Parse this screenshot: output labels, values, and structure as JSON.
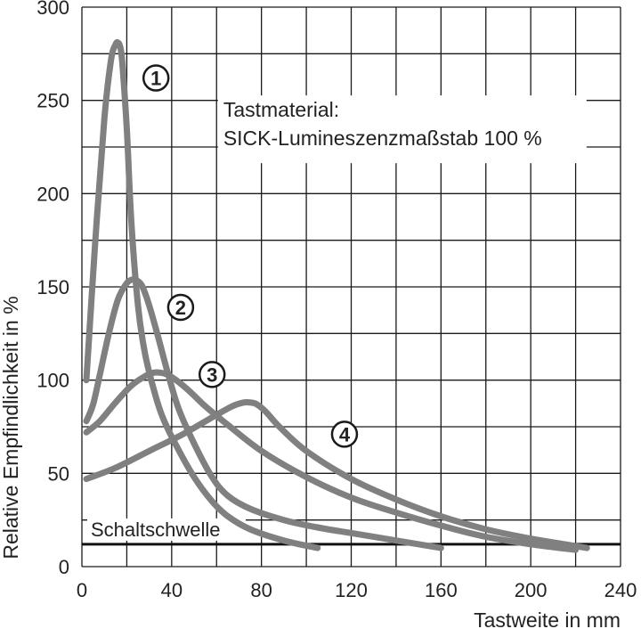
{
  "chart_data": {
    "type": "line",
    "xlabel": "Tastweite in mm",
    "ylabel": "Relative Empfindlichkeit in %",
    "xlim": [
      0,
      240
    ],
    "ylim": [
      0,
      300
    ],
    "x_ticks": [
      0,
      40,
      80,
      120,
      160,
      200,
      240
    ],
    "y_ticks": [
      0,
      50,
      100,
      150,
      200,
      250,
      300
    ],
    "grid": true,
    "grid_x_step": 20,
    "grid_y_step": 25,
    "line_color": "#808080",
    "threshold": {
      "label": "Schaltschwelle",
      "value": 12,
      "color": "#111111"
    },
    "annotation": {
      "lines": [
        "Tastmaterial:",
        "SICK-Lumineszenzmaßstab 100 %"
      ]
    },
    "series": [
      {
        "marker": "①",
        "marker_at": [
          33,
          262
        ],
        "x": [
          2,
          6,
          10,
          13,
          15,
          16,
          17,
          18,
          20,
          22,
          25,
          28,
          32,
          36,
          42,
          50,
          58,
          65,
          75,
          90,
          105
        ],
        "y": [
          100,
          175,
          240,
          272,
          280,
          281,
          279,
          270,
          235,
          185,
          140,
          115,
          95,
          80,
          65,
          48,
          35,
          27,
          20,
          14,
          10
        ]
      },
      {
        "marker": "②",
        "marker_at": [
          44,
          139
        ],
        "x": [
          2,
          5,
          8,
          12,
          16,
          20,
          23,
          25,
          27,
          30,
          34,
          38,
          43,
          50,
          58,
          65,
          75,
          90,
          105,
          120,
          140,
          160
        ],
        "y": [
          78,
          87,
          103,
          125,
          143,
          152,
          154,
          153,
          150,
          140,
          123,
          105,
          85,
          66,
          48,
          38,
          31,
          25,
          21,
          18,
          14,
          10
        ]
      },
      {
        "marker": "③",
        "marker_at": [
          58,
          103
        ],
        "x": [
          2,
          8,
          15,
          22,
          28,
          32,
          35,
          38,
          42,
          48,
          55,
          65,
          80,
          100,
          120,
          140,
          160,
          180,
          200,
          220
        ],
        "y": [
          72,
          78,
          88,
          97,
          102,
          104,
          104,
          103,
          100,
          94,
          86,
          76,
          62,
          48,
          37,
          29,
          22,
          16,
          12,
          9
        ]
      },
      {
        "marker": "④",
        "marker_at": [
          117,
          71
        ],
        "x": [
          2,
          15,
          30,
          45,
          58,
          67,
          72,
          75,
          78,
          82,
          88,
          100,
          120,
          140,
          160,
          180,
          200,
          215,
          225
        ],
        "y": [
          47,
          53,
          62,
          71,
          80,
          86,
          88,
          88,
          87,
          83,
          75,
          62,
          47,
          36,
          27,
          20,
          15,
          12,
          10
        ]
      }
    ]
  }
}
